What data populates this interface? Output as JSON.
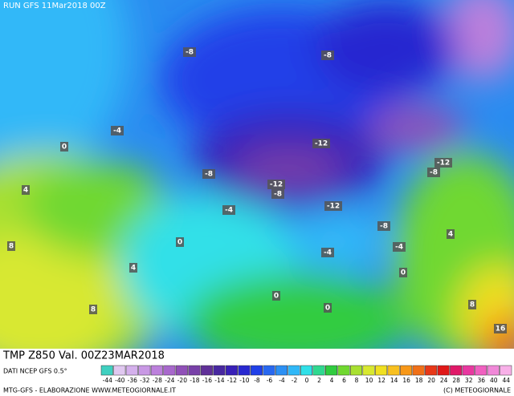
{
  "header": {
    "run": "RUN GFS 11Mar2018 00Z",
    "title": "TMP Z850 Val. 00Z23MAR2018",
    "source": "DATI NCEP GFS 0.5°"
  },
  "map_labels": [
    -8,
    -8,
    -4,
    0,
    -12,
    -8,
    -12,
    -8,
    -12,
    -8,
    4,
    -4,
    -12,
    -8,
    0,
    4,
    -4,
    -4,
    8,
    4,
    0,
    0,
    0,
    8,
    8,
    16
  ],
  "legend": {
    "values": [
      -44,
      -40,
      -36,
      -32,
      -28,
      -24,
      -20,
      -18,
      -16,
      -14,
      -12,
      -10,
      -8,
      -6,
      -4,
      -2,
      0,
      2,
      4,
      6,
      8,
      10,
      12,
      14,
      16,
      18,
      20,
      24,
      28,
      32,
      36,
      40,
      44
    ],
    "colors": [
      "#3fd0c0",
      "#e0c8f0",
      "#d4b0ec",
      "#c898e4",
      "#bc80dc",
      "#a868cc",
      "#9050b8",
      "#7840a8",
      "#603098",
      "#4828a0",
      "#3820b8",
      "#2828d0",
      "#2040e8",
      "#2868f0",
      "#2c90f4",
      "#30b8f8",
      "#30e0e8",
      "#30d890",
      "#30cc40",
      "#70d830",
      "#a8e030",
      "#d8e830",
      "#f0e020",
      "#f8c020",
      "#f89818",
      "#f07018",
      "#e83818",
      "#e01818",
      "#e01868",
      "#e838a0",
      "#f060c0",
      "#f088d8",
      "#f8b0e8"
    ]
  },
  "footer": {
    "left": "MTG-GFS - ELABORAZIONE WWW.METEOGIORNALE.IT",
    "right": "(C) METEOGIORNALE"
  }
}
